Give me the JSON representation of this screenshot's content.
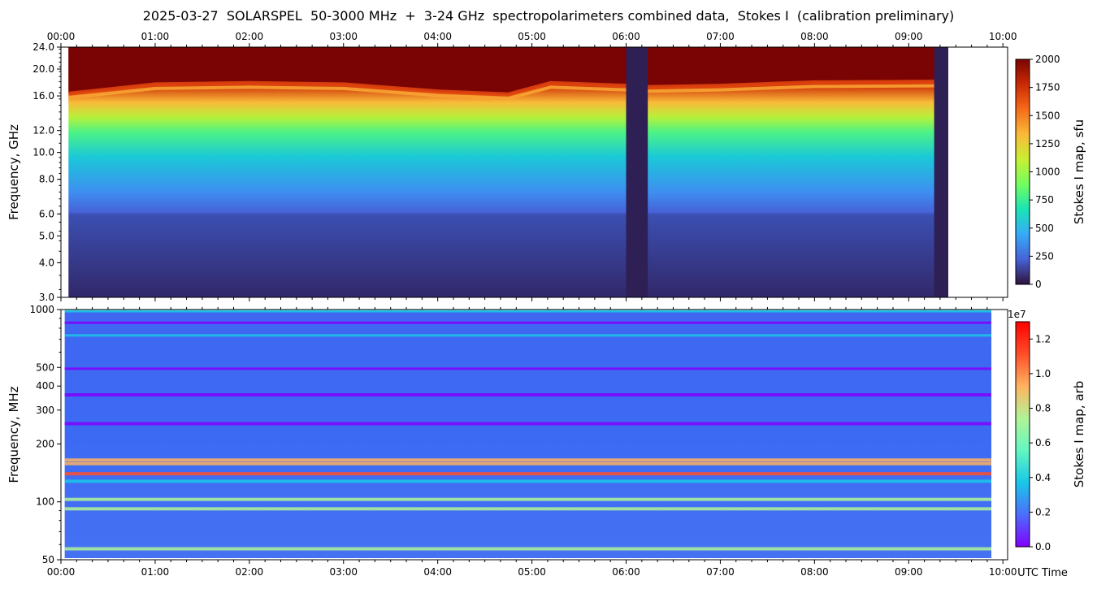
{
  "title": "2025-03-27  SOLARSPEL  50-3000 MHz  +  3-24 GHz  spectropolarimeters combined data,  Stokes I  (calibration preliminary)",
  "time_axis": {
    "tick_labels": [
      "00:00",
      "01:00",
      "02:00",
      "03:00",
      "04:00",
      "05:00",
      "06:00",
      "07:00",
      "08:00",
      "09:00",
      "10:00"
    ],
    "xlabel": "UTC Time",
    "range_hours": [
      0,
      10.05
    ]
  },
  "colors": {
    "low": "#2e1f55",
    "turbo": [
      "#30123b",
      "#4662d7",
      "#36aaf9",
      "#1ae4b6",
      "#72fe5e",
      "#c8ef34",
      "#faba39",
      "#f66b19",
      "#ca2a04",
      "#7a0403"
    ],
    "rainbow": [
      "#8000ff",
      "#4c6efb",
      "#1ac7e8",
      "#64f7c1",
      "#b2f396",
      "#ffb360",
      "#ff4d28",
      "#ff0000"
    ]
  },
  "chart_data": [
    {
      "type": "heatmap",
      "name": "upper-panel",
      "ylabel": "Frequency, GHz",
      "yscale": "log",
      "ylim": [
        3.0,
        24.0
      ],
      "y_tick_labels": [
        "3.0",
        "4.0",
        "5.0",
        "6.0",
        "8.0",
        "10.0",
        "12.0",
        "16.0",
        "20.0",
        "24.0"
      ],
      "y_ticks": [
        3.0,
        4.0,
        5.0,
        6.0,
        8.0,
        10.0,
        12.0,
        16.0,
        20.0,
        24.0
      ],
      "data_start_hours": 0.08,
      "data_end_hours": 9.42,
      "gaps_hours": [
        [
          6.0,
          6.23
        ],
        [
          9.27,
          9.42
        ]
      ],
      "saturation_edge_ghz": [
        [
          0.08,
          16.3
        ],
        [
          1.0,
          17.6
        ],
        [
          2.0,
          17.8
        ],
        [
          3.0,
          17.6
        ],
        [
          4.0,
          16.6
        ],
        [
          4.75,
          16.2
        ],
        [
          5.2,
          17.8
        ],
        [
          6.0,
          17.4
        ],
        [
          6.23,
          17.2
        ],
        [
          7.0,
          17.4
        ],
        [
          8.0,
          17.9
        ],
        [
          9.27,
          18.0
        ]
      ],
      "colorbar": {
        "label": "Stokes I map, sfu",
        "range": [
          0,
          2000
        ],
        "tick_labels": [
          "0",
          "250",
          "500",
          "750",
          "1000",
          "1250",
          "1500",
          "1750",
          "2000"
        ],
        "ticks": [
          0,
          250,
          500,
          750,
          1000,
          1250,
          1500,
          1750,
          2000
        ]
      }
    },
    {
      "type": "heatmap",
      "name": "lower-panel",
      "ylabel": "Frequency, MHz",
      "yscale": "log",
      "ylim": [
        50,
        1000
      ],
      "y_tick_labels": [
        "50",
        "100",
        "200",
        "300",
        "400",
        "500",
        "1000"
      ],
      "y_ticks": [
        50,
        100,
        200,
        300,
        400,
        500,
        1000
      ],
      "data_start_hours": 0.04,
      "data_end_hours": 10.05,
      "horizontal_bands_mhz": [
        {
          "f": 975,
          "v": 0.35
        },
        {
          "f": 850,
          "v": 0.05
        },
        {
          "f": 730,
          "v": 0.35
        },
        {
          "f": 490,
          "v": 0.05
        },
        {
          "f": 360,
          "v": 0.05
        },
        {
          "f": 255,
          "v": 0.05
        },
        {
          "f": 165,
          "v": 0.9
        },
        {
          "f": 158,
          "v": 0.9
        },
        {
          "f": 140,
          "v": 1.05
        },
        {
          "f": 128,
          "v": 0.45
        },
        {
          "f": 103,
          "v": 0.7
        },
        {
          "f": 92,
          "v": 0.75
        },
        {
          "f": 57,
          "v": 0.7
        }
      ],
      "colorbar": {
        "label": "Stokes I map, arb",
        "range": [
          0.0,
          1.3
        ],
        "exponent_label": "1e7",
        "tick_labels": [
          "0.0",
          "0.2",
          "0.4",
          "0.6",
          "0.8",
          "1.0",
          "1.2"
        ],
        "ticks": [
          0.0,
          0.2,
          0.4,
          0.6,
          0.8,
          1.0,
          1.2
        ]
      }
    }
  ]
}
